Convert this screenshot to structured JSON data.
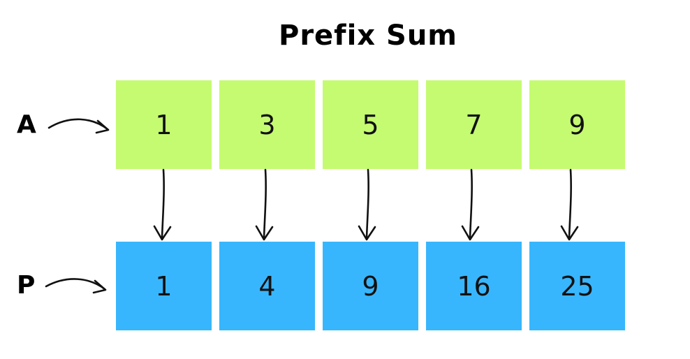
{
  "title": "Prefix Sum",
  "rows": [
    {
      "label": "A",
      "values": [
        "1",
        "3",
        "5",
        "7",
        "9"
      ],
      "color": "#c5fb70"
    },
    {
      "label": "P",
      "values": [
        "1",
        "4",
        "9",
        "16",
        "25"
      ],
      "color": "#38b6fd"
    }
  ]
}
